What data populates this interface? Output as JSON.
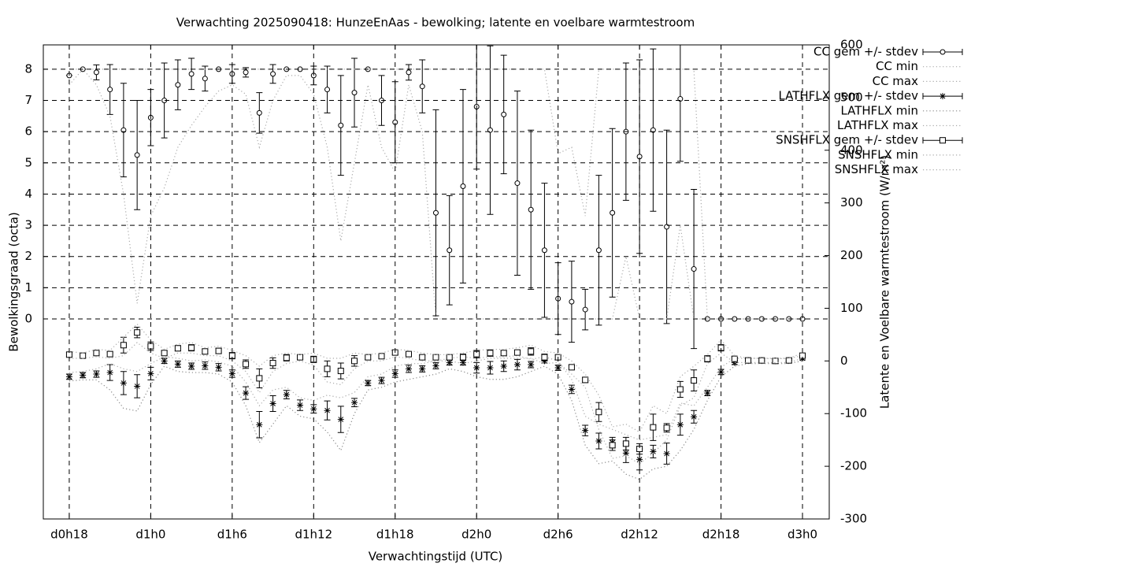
{
  "chart_data": {
    "type": "line",
    "title": "Verwachting 2025090418: HunzeEnAas - bewolking; latente en voelbare warmtestroom",
    "x_label": "Verwachtingstijd (UTC)",
    "y_label": "Bewolkingsgraad (octa)",
    "y2_label": "Latente en Voelbare warmtestroom (W/m²)",
    "legend": "outside-top-right",
    "grid": true,
    "xlim": [
      16.09,
      73.97
    ],
    "xticks": [
      {
        "value": 18,
        "label": "d0h18"
      },
      {
        "value": 24,
        "label": "d1h0"
      },
      {
        "value": 30,
        "label": "d1h6"
      },
      {
        "value": 36,
        "label": "d1h12"
      },
      {
        "value": 42,
        "label": "d1h18"
      },
      {
        "value": 48,
        "label": "d2h0"
      },
      {
        "value": 54,
        "label": "d2h6"
      },
      {
        "value": 60,
        "label": "d2h12"
      },
      {
        "value": 66,
        "label": "d2h18"
      },
      {
        "value": 72,
        "label": "d3h0"
      }
    ],
    "ylim": [
      -6.41,
      8.78
    ],
    "yticks": [
      0,
      1,
      2,
      3,
      4,
      5,
      6,
      7,
      8
    ],
    "y2lim": [
      -300,
      600
    ],
    "y2ticks": [
      -300,
      -200,
      -100,
      0,
      100,
      200,
      300,
      400,
      500,
      600
    ],
    "x": [
      18,
      19,
      20,
      21,
      22,
      23,
      24,
      25,
      26,
      27,
      28,
      29,
      30,
      31,
      32,
      33,
      34,
      35,
      36,
      37,
      38,
      39,
      40,
      41,
      42,
      43,
      44,
      45,
      46,
      47,
      48,
      49,
      50,
      51,
      52,
      53,
      54,
      55,
      56,
      57,
      58,
      59,
      60,
      61,
      62,
      63,
      64,
      65,
      66,
      67,
      68,
      69,
      70,
      71,
      72
    ],
    "series": [
      {
        "name": "CC gem +/- stdev",
        "color": "#000000",
        "marker": "circle",
        "values": [
          7.8,
          8,
          7.9,
          7.35,
          6.05,
          5.25,
          6.45,
          7.0,
          7.5,
          7.85,
          7.7,
          8,
          7.85,
          7.9,
          6.6,
          7.85,
          8,
          8,
          7.8,
          7.35,
          6.2,
          7.25,
          8,
          7.0,
          6.3,
          7.9,
          7.45,
          3.4,
          2.2,
          4.25,
          6.8,
          6.05,
          6.55,
          4.35,
          3.5,
          2.2,
          0.65,
          0.55,
          0.3,
          2.2,
          3.4,
          6.0,
          5.2,
          6.05,
          2.95,
          7.05,
          1.6,
          0,
          0,
          0,
          0,
          0,
          0,
          0,
          0
        ],
        "error": [
          0,
          0,
          0.24,
          0.8,
          1.5,
          1.75,
          0.9,
          1.2,
          0.8,
          0.5,
          0.4,
          0,
          0.3,
          0.15,
          0.65,
          0.3,
          0,
          0,
          0.3,
          0.75,
          1.6,
          1.1,
          0,
          0.8,
          1.3,
          0.25,
          0.85,
          3.3,
          1.75,
          3.1,
          2,
          2.7,
          1.9,
          2.95,
          2.55,
          2.15,
          1.15,
          1.3,
          0.65,
          2.4,
          2.7,
          2.2,
          3.1,
          2.6,
          3.1,
          2,
          2.55,
          0,
          0,
          0,
          0,
          0,
          0,
          0,
          0
        ]
      },
      {
        "name": "CC min",
        "color": "#aaaaaa",
        "line": "dotted",
        "values": [
          7.5,
          8,
          7.5,
          6.5,
          4,
          0.5,
          3.3,
          4.2,
          5.5,
          6.2,
          6.8,
          7.3,
          7.5,
          7.2,
          5.5,
          7,
          7.8,
          7.8,
          7.2,
          5.5,
          2.5,
          5,
          7.5,
          5.5,
          4.7,
          7.5,
          6,
          0,
          0,
          0,
          0,
          0,
          0,
          0,
          0,
          0,
          0,
          0,
          0,
          0,
          0,
          2,
          0,
          0,
          0,
          3,
          0,
          0,
          0,
          0,
          0,
          0,
          0,
          0,
          0
        ]
      },
      {
        "name": "CC max",
        "color": "#aaaaaa",
        "line": "dotted",
        "values": [
          8,
          8,
          8,
          8,
          8,
          8,
          8,
          8,
          8,
          8,
          8,
          8,
          8,
          8,
          8,
          8,
          8,
          8,
          8,
          8,
          8,
          8,
          8,
          8,
          8,
          8,
          8,
          8,
          8,
          8,
          8,
          8,
          8,
          8,
          8,
          8,
          5.3,
          5.5,
          3.3,
          8,
          8,
          8,
          8,
          8,
          8,
          8,
          8,
          0,
          0,
          0,
          0,
          0,
          0,
          0,
          0
        ]
      },
      {
        "name": "LATHFLX gem +/- stdev",
        "color": "#000000",
        "marker": "star",
        "axis": "y2",
        "values": [
          -30,
          -27,
          -25,
          -22,
          -42,
          -48,
          -24,
          0,
          -6,
          -10,
          -9,
          -12,
          -24,
          -61,
          -121,
          -81,
          -64,
          -84,
          -91,
          -94,
          -111,
          -79,
          -42,
          -37,
          -24,
          -15,
          -15,
          -9,
          -3,
          -3,
          -13,
          -13,
          -10,
          -7,
          -7,
          0,
          -13,
          -54,
          -132,
          -152,
          -155,
          -175,
          -187,
          -172,
          -176,
          -121,
          -106,
          -61,
          -21,
          -3,
          1,
          1,
          0,
          1,
          5
        ],
        "error": [
          5,
          5,
          6,
          15,
          22,
          22,
          12,
          5,
          6,
          6,
          7,
          7,
          7,
          12,
          25,
          15,
          8,
          10,
          8,
          18,
          25,
          8,
          5,
          6,
          7,
          7,
          6,
          6,
          5,
          5,
          10,
          12,
          10,
          10,
          6,
          4,
          5,
          8,
          10,
          15,
          10,
          18,
          20,
          12,
          20,
          20,
          12,
          5,
          5,
          4,
          3,
          3,
          3,
          3,
          3
        ]
      },
      {
        "name": "LATHFLX min",
        "color": "#888888",
        "line": "dotted",
        "axis": "y2",
        "values": [
          -38,
          -36,
          -36,
          -55,
          -90,
          -95,
          -45,
          -10,
          -20,
          -22,
          -22,
          -25,
          -40,
          -85,
          -155,
          -120,
          -85,
          -105,
          -110,
          -135,
          -170,
          -100,
          -55,
          -50,
          -40,
          -35,
          -30,
          -25,
          -15,
          -20,
          -30,
          -35,
          -35,
          -30,
          -20,
          -10,
          -25,
          -75,
          -160,
          -195,
          -190,
          -215,
          -225,
          -205,
          -200,
          -170,
          -130,
          -75,
          -30,
          -10,
          -5,
          -5,
          -5,
          -5,
          0
        ]
      },
      {
        "name": "LATHFLX max",
        "color": "#aaaaaa",
        "line": "dotted",
        "axis": "y2",
        "values": [
          -22,
          -20,
          -15,
          -5,
          -15,
          -20,
          -5,
          8,
          5,
          0,
          2,
          -2,
          -10,
          -40,
          -85,
          -55,
          -50,
          -70,
          -75,
          -65,
          -70,
          -60,
          -30,
          -25,
          -10,
          -5,
          -5,
          0,
          5,
          8,
          5,
          8,
          8,
          10,
          3,
          8,
          0,
          -35,
          -105,
          -120,
          -130,
          -140,
          -150,
          -145,
          -140,
          -80,
          -85,
          -50,
          -12,
          5,
          5,
          5,
          4,
          5,
          10
        ]
      },
      {
        "name": "SNSHFLX gem +/- stdev",
        "color": "#000000",
        "marker": "square",
        "axis": "y2",
        "values": [
          12,
          10,
          15,
          13,
          30,
          54,
          28,
          15,
          24,
          25,
          18,
          19,
          10,
          -6,
          -33,
          -4,
          6,
          7,
          3,
          -15,
          -19,
          0,
          7,
          9,
          16,
          13,
          7,
          7,
          7,
          7,
          13,
          15,
          15,
          16,
          18,
          7,
          7,
          -12,
          -36,
          -97,
          -160,
          -157,
          -167,
          -126,
          -127,
          -54,
          -37,
          4,
          25,
          4,
          1,
          1,
          0,
          1,
          10
        ],
        "error": [
          4,
          4,
          4,
          4,
          15,
          10,
          8,
          4,
          5,
          6,
          5,
          5,
          6,
          8,
          18,
          10,
          6,
          4,
          6,
          15,
          15,
          10,
          4,
          4,
          4,
          4,
          4,
          4,
          4,
          6,
          7,
          6,
          4,
          4,
          7,
          6,
          4,
          4,
          5,
          18,
          10,
          12,
          10,
          25,
          8,
          15,
          20,
          6,
          6,
          4,
          3,
          3,
          3,
          3,
          3
        ]
      },
      {
        "name": "SNSHFLX min",
        "color": "#aaaaaa",
        "line": "dotted",
        "axis": "y2",
        "values": [
          5,
          5,
          8,
          5,
          10,
          35,
          15,
          5,
          15,
          15,
          10,
          10,
          0,
          -20,
          -60,
          -20,
          -5,
          0,
          -8,
          -40,
          -45,
          -15,
          0,
          0,
          8,
          5,
          0,
          0,
          0,
          -5,
          0,
          5,
          5,
          5,
          5,
          -5,
          -3,
          -25,
          -50,
          -130,
          -185,
          -180,
          -195,
          -175,
          -150,
          -85,
          -70,
          -5,
          15,
          -3,
          -3,
          -3,
          -3,
          -3,
          5
        ]
      },
      {
        "name": "SNSHFLX max",
        "color": "#aaaaaa",
        "line": "dotted",
        "axis": "y2",
        "values": [
          18,
          15,
          22,
          20,
          45,
          70,
          40,
          22,
          32,
          35,
          25,
          28,
          20,
          10,
          -10,
          10,
          15,
          12,
          15,
          5,
          5,
          15,
          12,
          15,
          22,
          20,
          15,
          12,
          12,
          15,
          20,
          22,
          22,
          25,
          30,
          18,
          15,
          0,
          -25,
          -65,
          -125,
          -120,
          -135,
          -85,
          -100,
          -30,
          -10,
          12,
          40,
          10,
          5,
          5,
          5,
          5,
          15
        ]
      }
    ]
  }
}
